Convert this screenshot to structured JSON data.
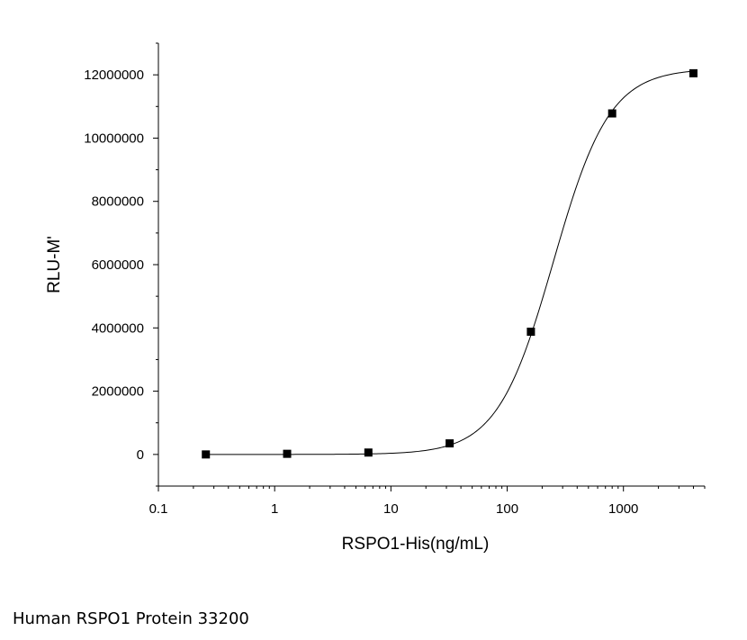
{
  "chart_data": {
    "type": "scatter",
    "xlabel": "RSPO1-His(ng/mL)",
    "ylabel": "RLU-M'",
    "x_scale": "log",
    "xlim": [
      0.1,
      5000
    ],
    "ylim": [
      -1000000,
      13000000
    ],
    "x_ticks": [
      {
        "value": 0.1,
        "label": "0.1"
      },
      {
        "value": 1,
        "label": "1"
      },
      {
        "value": 10,
        "label": "10"
      },
      {
        "value": 100,
        "label": "100"
      },
      {
        "value": 1000,
        "label": "1000"
      }
    ],
    "y_ticks": [
      {
        "value": 0,
        "label": "0"
      },
      {
        "value": 2000000,
        "label": "2000000"
      },
      {
        "value": 4000000,
        "label": "4000000"
      },
      {
        "value": 6000000,
        "label": "6000000"
      },
      {
        "value": 8000000,
        "label": "8000000"
      },
      {
        "value": 10000000,
        "label": "10000000"
      },
      {
        "value": 12000000,
        "label": "12000000"
      }
    ],
    "series": [
      {
        "x": [
          0.256,
          1.28,
          6.4,
          32,
          160,
          800,
          4000
        ],
        "y": [
          0,
          20000,
          60000,
          350000,
          3880000,
          10780000,
          12050000
        ]
      }
    ],
    "fit_curve": {
      "type": "4PL",
      "bottom": 0,
      "top": 12200000,
      "ec50": 250,
      "hill": 1.8
    },
    "grid": false,
    "legend": "none",
    "marker_color": "#000000",
    "line_color": "#000000"
  },
  "caption": "Human RSPO1 Protein 33200"
}
